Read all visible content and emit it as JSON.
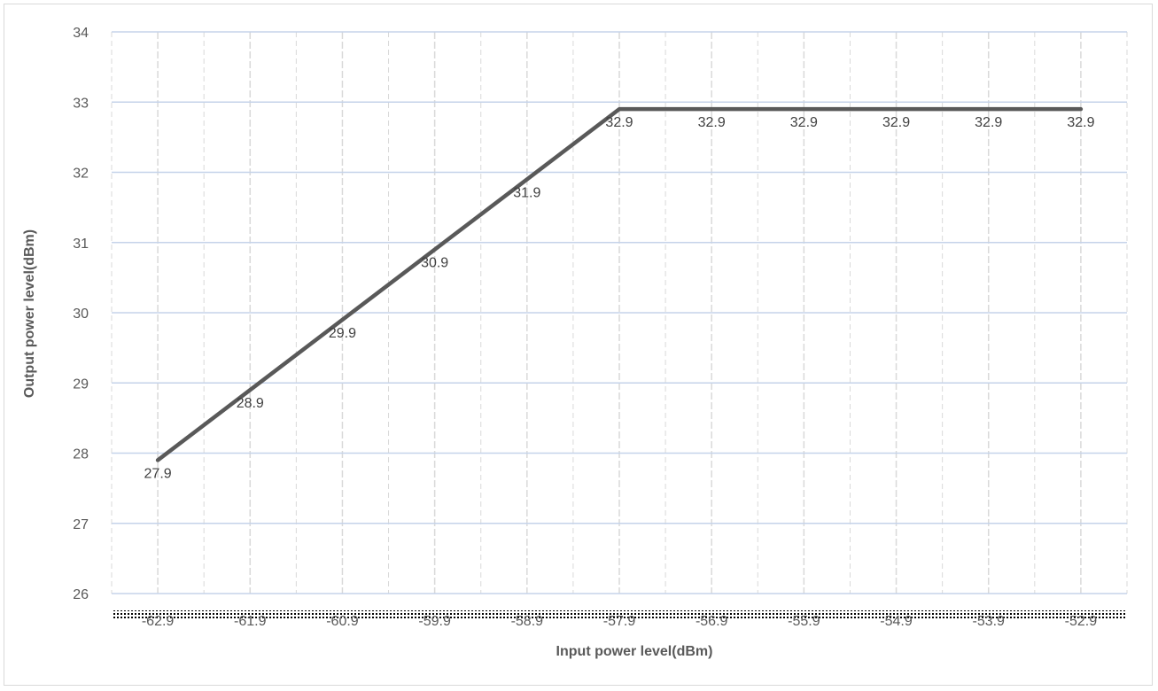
{
  "chart_data": {
    "type": "line",
    "title": "",
    "xlabel": "Input power level(dBm)",
    "ylabel": "Output power level(dBm)",
    "x": [
      "-62.9",
      "-61.9",
      "-60.9",
      "-59.9",
      "-58.9",
      "-57.9",
      "-56.9",
      "-55.9",
      "-54.9",
      "-53.9",
      "-52.9"
    ],
    "series": [
      {
        "values": [
          27.9,
          28.9,
          29.9,
          30.9,
          31.9,
          32.9,
          32.9,
          32.9,
          32.9,
          32.9,
          32.9
        ]
      }
    ],
    "data_labels": [
      "27.9",
      "28.9",
      "29.9",
      "30.9",
      "31.9",
      "32.9",
      "32.9",
      "32.9",
      "32.9",
      "32.9",
      "32.9"
    ],
    "ylim": [
      26,
      34
    ],
    "yticks": [
      26,
      27,
      28,
      29,
      30,
      31,
      32,
      33,
      34
    ],
    "grid": true,
    "legend": "none",
    "colors": {
      "line": "#595959",
      "grid_major": "#c5d3ea",
      "grid_minor": "#d9d9d9",
      "axis_text": "#595959"
    }
  }
}
